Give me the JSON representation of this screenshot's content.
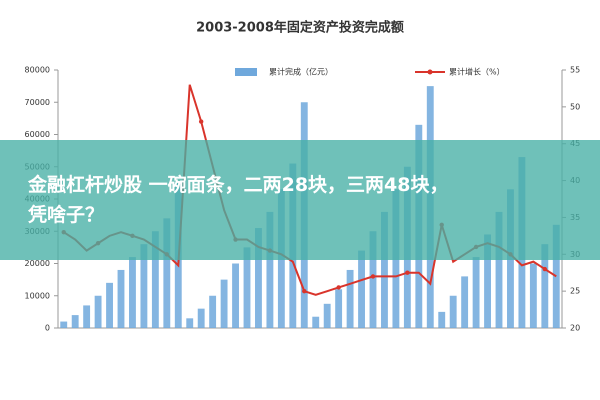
{
  "chart_data": {
    "type": "bar_line",
    "title": "2003-2008年固定资产投资完成额",
    "categories": [
      null,
      null,
      null,
      null,
      null,
      null,
      null,
      null,
      null,
      null,
      null,
      null,
      null,
      null,
      null,
      null,
      null,
      null,
      null,
      null,
      null,
      null,
      null,
      null,
      null,
      null,
      null,
      null,
      null,
      null,
      null,
      null,
      null,
      null,
      null,
      null,
      null,
      null,
      null,
      null,
      null,
      null,
      null,
      null
    ],
    "series": [
      {
        "name": "累计完成（亿元）",
        "color": "#6fa8dc",
        "type": "bar",
        "values": [
          2000,
          4000,
          7000,
          10000,
          14000,
          18000,
          22000,
          26000,
          30000,
          34000,
          45000,
          3000,
          6000,
          10000,
          15000,
          20000,
          25000,
          31000,
          36000,
          43000,
          51000,
          70000,
          3500,
          7500,
          12000,
          18000,
          24000,
          30000,
          36000,
          43000,
          50000,
          63000,
          75000,
          5000,
          10000,
          16000,
          22000,
          29000,
          36000,
          43000,
          53000,
          20000,
          26000,
          32000
        ]
      },
      {
        "name": "累计增长（%）",
        "color": "#d9342b",
        "type": "line",
        "axis": "y2",
        "values": [
          33,
          32,
          30.5,
          31.5,
          32.5,
          33,
          32.5,
          32,
          31,
          30,
          28.5,
          53,
          48,
          42,
          36,
          32,
          32,
          31,
          30.5,
          30,
          29,
          25,
          24.5,
          25,
          25.5,
          26,
          26.5,
          27,
          27,
          27,
          27.5,
          27.5,
          26,
          34,
          29,
          30,
          31,
          31.5,
          31,
          30,
          28.5,
          29,
          28,
          27
        ]
      }
    ],
    "ylim": [
      0,
      80000
    ],
    "yticks": [
      0,
      10000,
      20000,
      30000,
      40000,
      50000,
      60000,
      70000,
      80000
    ],
    "y2lim": [
      20,
      55
    ],
    "y2ticks": [
      20,
      25,
      30,
      35,
      40,
      45,
      50,
      55
    ],
    "legend": "top"
  },
  "overlay_text": [
    "金融杠杆炒股 一碗面条，二两28块，三两48块，",
    "凭啥子？"
  ]
}
